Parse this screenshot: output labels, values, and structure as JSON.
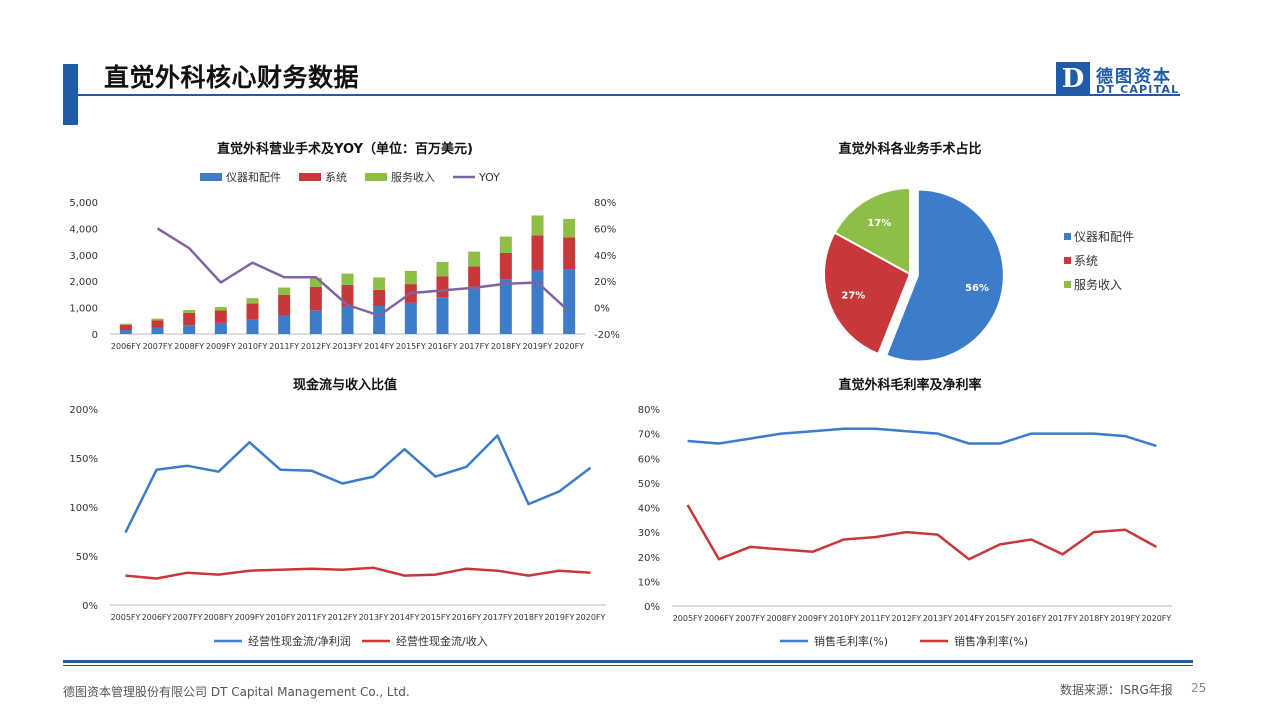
{
  "header": {
    "title": "直觉外科核心财务数据",
    "logo_letter": "D",
    "logo_cn": "德图资本",
    "logo_en": "DT CAPITAL",
    "accent_color": "#1f5ba8"
  },
  "footer": {
    "company": "德图资本管理股份有限公司  DT Capital Management  Co., Ltd.",
    "source": "数据来源：ISRG年报",
    "page_number": "25"
  },
  "chart_data": [
    {
      "type": "bar",
      "stacked": true,
      "title": "直觉外科营业手术及YOY（单位：百万美元)",
      "categories": [
        "2006FY",
        "2007FY",
        "2008FY",
        "2009FY",
        "2010FY",
        "2011FY",
        "2012FY",
        "2013FY",
        "2014FY",
        "2015FY",
        "2016FY",
        "2017FY",
        "2018FY",
        "2019FY",
        "2020FY"
      ],
      "series": [
        {
          "name": "仪器和配件",
          "color": "#3d7cc9",
          "values": [
            150,
            230,
            330,
            420,
            540,
            700,
            900,
            1040,
            1060,
            1180,
            1390,
            1710,
            2080,
            2410,
            2460
          ]
        },
        {
          "name": "系统",
          "color": "#c8373a",
          "values": [
            200,
            280,
            470,
            470,
            620,
            780,
            880,
            820,
            610,
            710,
            790,
            850,
            990,
            1330,
            1200
          ]
        },
        {
          "name": "服务收入",
          "color": "#8ebe45",
          "values": [
            40,
            70,
            110,
            130,
            200,
            280,
            350,
            430,
            470,
            500,
            550,
            560,
            620,
            750,
            700
          ]
        }
      ],
      "line_series": {
        "name": "YOY",
        "color": "#8064a2",
        "axis": "right",
        "values": [
          null,
          60,
          45,
          19,
          34,
          23,
          23,
          2,
          -6,
          11,
          13,
          15,
          18,
          19,
          -3
        ]
      },
      "ylim": [
        0,
        5000
      ],
      "yticks": [
        "5,000",
        "4,000",
        "3,000",
        "2,000",
        "1,000",
        "0"
      ],
      "y2lim": [
        -20,
        80
      ],
      "y2ticks": [
        "80%",
        "60%",
        "40%",
        "20%",
        "0%",
        "-20%"
      ],
      "legend": "top"
    },
    {
      "type": "pie",
      "title": "直觉外科各业务手术占比",
      "slices": [
        {
          "name": "仪器和配件",
          "value": 56,
          "label": "56%",
          "color": "#3d7cc9"
        },
        {
          "name": "系统",
          "value": 27,
          "label": "27%",
          "color": "#c8373a"
        },
        {
          "name": "服务收入",
          "value": 17,
          "label": "17%",
          "color": "#8ebe45"
        }
      ],
      "legend": "right"
    },
    {
      "type": "line",
      "title": "现金流与收入比值",
      "categories": [
        "2005FY",
        "2006FY",
        "2007FY",
        "2008FY",
        "2009FY",
        "2010FY",
        "2011FY",
        "2012FY",
        "2013FY",
        "2014FY",
        "2015FY",
        "2016FY",
        "2017FY",
        "2018FY",
        "2019FY",
        "2020FY"
      ],
      "series": [
        {
          "name": "经营性现金流/净利润",
          "color": "#3d7cc9",
          "values": [
            74,
            138,
            142,
            136,
            166,
            138,
            137,
            124,
            131,
            159,
            131,
            141,
            173,
            103,
            116,
            140
          ]
        },
        {
          "name": "经营性现金流/收入",
          "color": "#c8373a",
          "values": [
            30,
            27,
            33,
            31,
            35,
            36,
            37,
            36,
            38,
            30,
            31,
            37,
            35,
            30,
            35,
            33
          ]
        }
      ],
      "ylim": [
        0,
        200
      ],
      "yticks": [
        "200%",
        "150%",
        "100%",
        "50%",
        "0%"
      ],
      "legend": "bottom"
    },
    {
      "type": "line",
      "title": "直觉外科毛利率及净利率",
      "categories": [
        "2005FY",
        "2006FY",
        "2007FY",
        "2008FY",
        "2009FY",
        "2010FY",
        "2011FY",
        "2012FY",
        "2013FY",
        "2014FY",
        "2015FY",
        "2016FY",
        "2017FY",
        "2018FY",
        "2019FY",
        "2020FY"
      ],
      "series": [
        {
          "name": "销售毛利率(%)",
          "color": "#3d7cc9",
          "values": [
            67,
            66,
            68,
            70,
            71,
            72,
            72,
            71,
            70,
            66,
            66,
            70,
            70,
            70,
            69,
            65
          ]
        },
        {
          "name": "销售净利率(%)",
          "color": "#c8373a",
          "values": [
            41,
            19,
            24,
            23,
            22,
            27,
            28,
            30,
            29,
            19,
            25,
            27,
            21,
            30,
            31,
            24
          ]
        }
      ],
      "ylim": [
        0,
        80
      ],
      "yticks": [
        "80%",
        "70%",
        "60%",
        "50%",
        "40%",
        "30%",
        "20%",
        "10%",
        "0%"
      ],
      "legend": "bottom"
    }
  ]
}
